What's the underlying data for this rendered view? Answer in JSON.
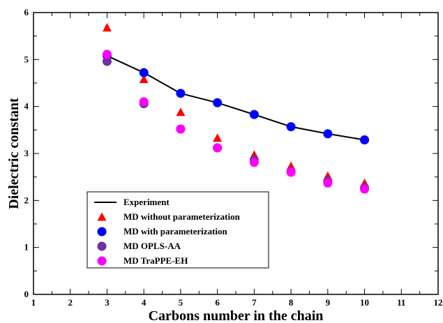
{
  "chart_data": {
    "type": "scatter",
    "xlabel": "Carbons number in the chain",
    "ylabel": "Dielectric constant",
    "xlim": [
      1,
      12
    ],
    "ylim": [
      0,
      6
    ],
    "xticks": [
      1,
      2,
      3,
      4,
      5,
      6,
      7,
      8,
      9,
      10,
      11,
      12
    ],
    "yticks": [
      0,
      1,
      2,
      3,
      4,
      5,
      6
    ],
    "grid": false,
    "legend_position": "bottom-left",
    "series": [
      {
        "name": "Experiment",
        "kind": "line",
        "color": "#000000",
        "x": [
          3,
          4,
          5,
          6,
          7,
          8,
          9,
          10
        ],
        "y": [
          5.08,
          4.72,
          4.28,
          4.08,
          3.83,
          3.57,
          3.42,
          3.29
        ]
      },
      {
        "name": "MD without parameterization",
        "kind": "triangle",
        "color": "#ff0000",
        "x": [
          3,
          4,
          5,
          6,
          7,
          8,
          9,
          10
        ],
        "y": [
          5.68,
          4.58,
          3.88,
          3.33,
          2.97,
          2.73,
          2.52,
          2.37
        ]
      },
      {
        "name": "MD with parameterization",
        "kind": "circle",
        "color": "#0000ff",
        "x": [
          3,
          4,
          5,
          6,
          7,
          8,
          9,
          10
        ],
        "y": [
          5.08,
          4.72,
          4.28,
          4.08,
          3.83,
          3.57,
          3.42,
          3.29
        ]
      },
      {
        "name": "MD OPLS-AA",
        "kind": "circle",
        "color": "#7030a0",
        "x": [
          3,
          4,
          5,
          6,
          7,
          8,
          9,
          10
        ],
        "y": [
          4.96,
          4.06,
          3.52,
          3.12,
          2.86,
          2.62,
          2.41,
          2.27
        ]
      },
      {
        "name": "MD TraPPE-EH",
        "kind": "circle",
        "color": "#ff00ff",
        "x": [
          3,
          4,
          5,
          6,
          7,
          8,
          9,
          10
        ],
        "y": [
          5.11,
          4.1,
          3.52,
          3.12,
          2.81,
          2.6,
          2.37,
          2.24
        ]
      }
    ]
  }
}
